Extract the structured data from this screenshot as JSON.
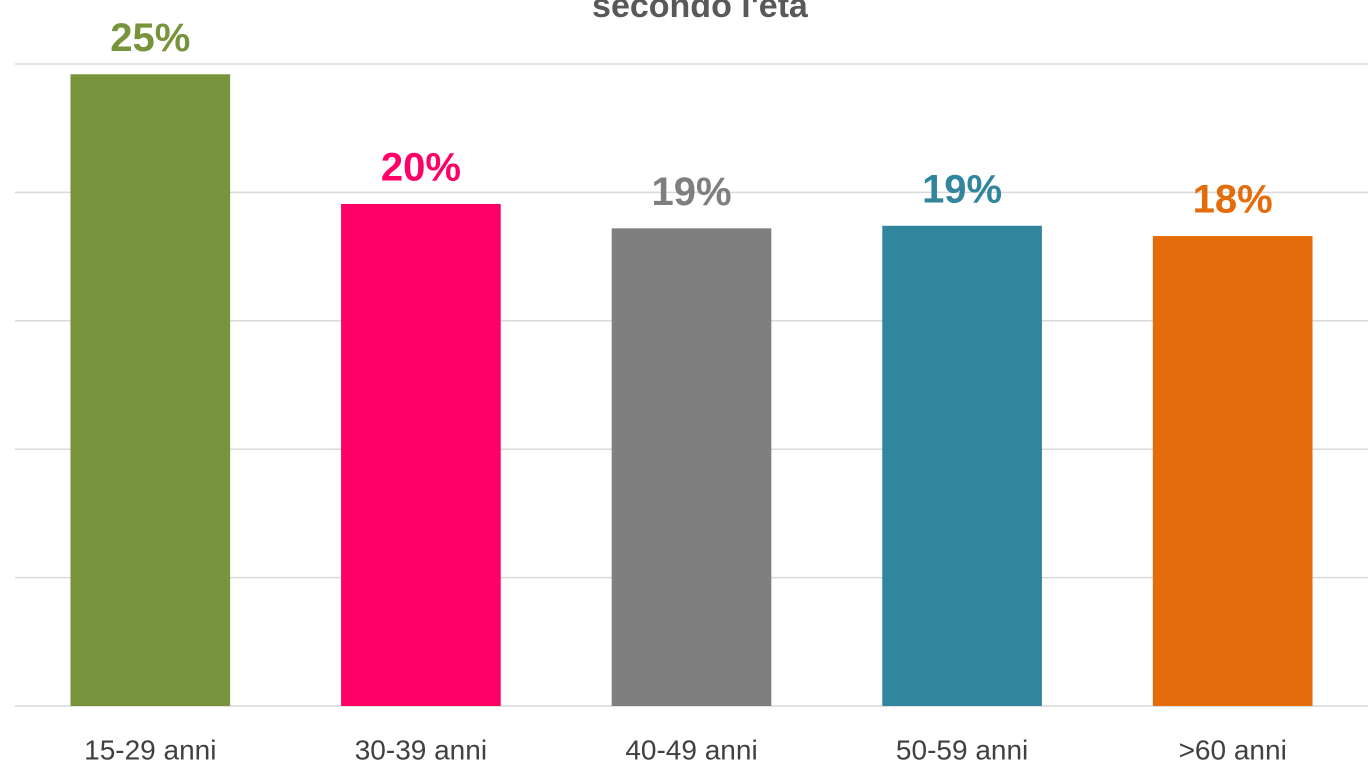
{
  "chart_data": {
    "type": "bar",
    "title": "secondo l'età",
    "categories": [
      "15-29 anni",
      "30-39 anni",
      "40-49 anni",
      "50-59 anni",
      ">60 anni"
    ],
    "values": [
      24.6,
      19.55,
      18.6,
      18.7,
      18.3
    ],
    "value_labels": [
      "25%",
      "20%",
      "19%",
      "19%",
      "18%"
    ],
    "colors": [
      "#77933c",
      "#ff0066",
      "#7f7f7f",
      "#31859c",
      "#e46c0a"
    ],
    "ylim": [
      0,
      25
    ],
    "yticks": [
      0,
      5,
      10,
      15,
      20,
      25
    ],
    "grid": true
  }
}
